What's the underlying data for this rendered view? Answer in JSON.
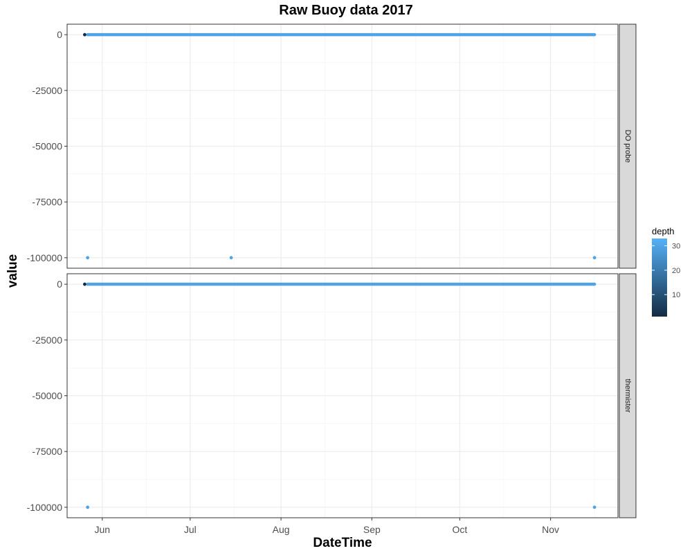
{
  "chart_data": {
    "type": "scatter",
    "title": "Raw Buoy data 2017",
    "xlabel": "DateTime",
    "ylabel": "value",
    "x_ticks": [
      "Jun",
      "Jul",
      "Aug",
      "Sep",
      "Oct",
      "Nov"
    ],
    "x_tick_dates": [
      "2017-06-01",
      "2017-07-01",
      "2017-08-01",
      "2017-09-01",
      "2017-10-01",
      "2017-11-01"
    ],
    "xlim": [
      "2017-05-20",
      "2017-11-24"
    ],
    "y_ticks": [
      0,
      -25000,
      -50000,
      -75000,
      -100000
    ],
    "y_tick_labels": [
      "0",
      "-25000",
      "-50000",
      "-75000",
      "-100000"
    ],
    "ylim": [
      -104700,
      4700
    ],
    "grid": true,
    "legend": {
      "title": "depth",
      "position": "right",
      "type": "colorbar",
      "range": [
        1,
        33
      ],
      "ticks": [
        10,
        20,
        30
      ],
      "tick_labels": [
        "10",
        "20",
        "30"
      ],
      "color_low": "#132B43",
      "color_high": "#56B1F7"
    },
    "panels": [
      {
        "label": "DO probe",
        "line_series": {
          "x_start": "2017-05-27",
          "x_end": "2017-11-16",
          "y": 0,
          "depth": 30
        },
        "shallow_points": [
          {
            "x": "2017-05-26",
            "y": 0,
            "depth": 1
          }
        ],
        "points": [
          {
            "x": "2017-05-27",
            "y": -100000,
            "depth": 30
          },
          {
            "x": "2017-07-15",
            "y": -100000,
            "depth": 30
          },
          {
            "x": "2017-11-16",
            "y": -100000,
            "depth": 30
          }
        ]
      },
      {
        "label": "thermister",
        "line_series": {
          "x_start": "2017-05-27",
          "x_end": "2017-11-16",
          "y": 0,
          "depth": 30
        },
        "shallow_points": [
          {
            "x": "2017-05-26",
            "y": 0,
            "depth": 1
          }
        ],
        "points": [
          {
            "x": "2017-05-27",
            "y": -100000,
            "depth": 30
          },
          {
            "x": "2017-11-16",
            "y": -100000,
            "depth": 30
          }
        ]
      }
    ]
  }
}
